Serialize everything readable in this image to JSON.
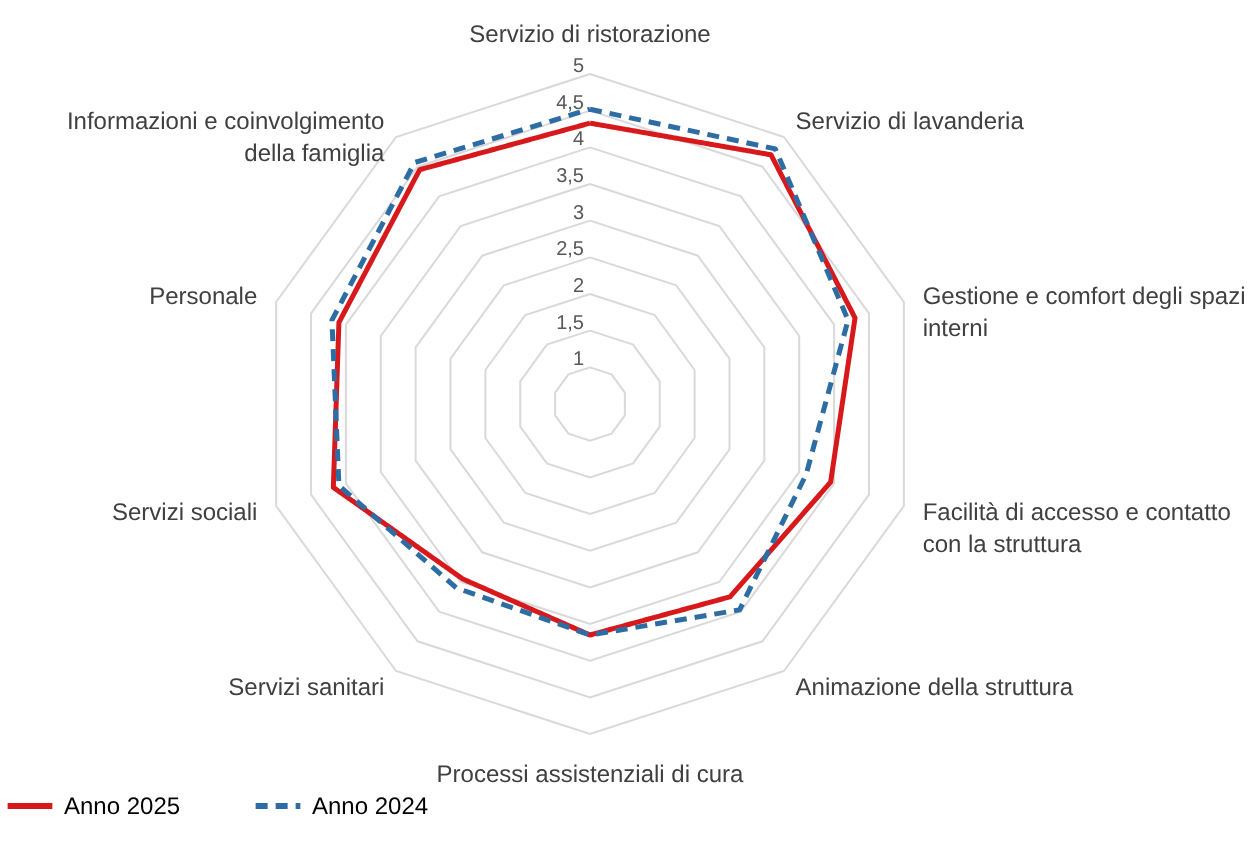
{
  "chart_data": {
    "type": "radar",
    "categories": [
      "Servizio di ristorazione",
      "Servizio di lavanderia",
      "Gestione e comfort degli spazi interni",
      "Facilità di accesso e contatto con la struttura",
      "Animazione della struttura",
      "Processi assistenziali di cura",
      "Servizi sanitari",
      "Servizi sociali",
      "Personale",
      "Informazioni e coinvolgimento della famiglia"
    ],
    "series": [
      {
        "name": "Anno 2025",
        "color": "#d7191c",
        "line_style": "solid",
        "values": [
          4.33,
          4.7,
          4.3,
          3.95,
          3.75,
          3.65,
          3.45,
          4.18,
          4.1,
          4.45
        ]
      },
      {
        "name": "Anno 2024",
        "color": "#2e6da4",
        "line_style": "dashed",
        "values": [
          4.52,
          4.8,
          4.2,
          3.6,
          3.97,
          3.65,
          3.6,
          4.1,
          4.2,
          4.57
        ]
      }
    ],
    "ylim": [
      0.5,
      5
    ],
    "yticks": [
      1,
      {
        "value": 1.5,
        "label": "1,5"
      },
      2,
      {
        "value": 2.5,
        "label": "2,5"
      },
      3,
      {
        "value": 3.5,
        "label": "3,5"
      },
      4,
      {
        "value": 4.5,
        "label": "4,5"
      },
      5
    ],
    "grid": true,
    "legend": "bottom",
    "marker": "none"
  }
}
